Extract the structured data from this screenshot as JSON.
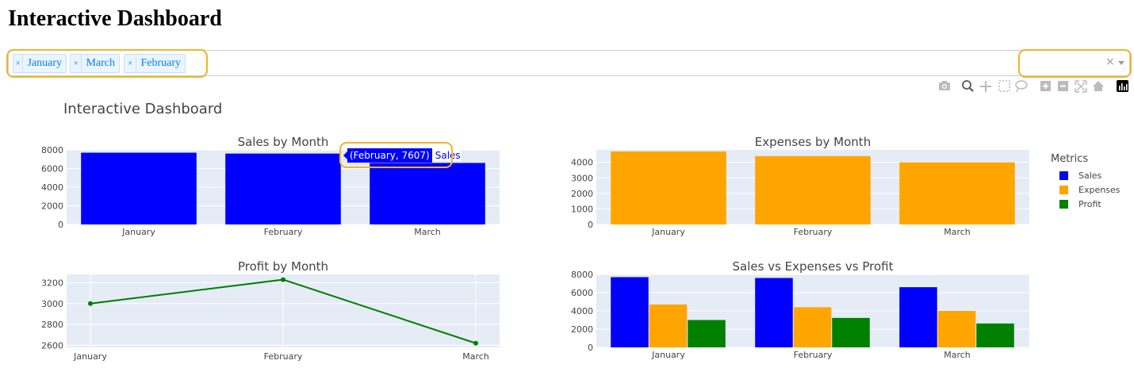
{
  "page": {
    "title": "Interactive Dashboard"
  },
  "month_dropdown": {
    "selected": [
      "January",
      "March",
      "February"
    ],
    "clear_symbol": "×",
    "remove_symbol": "×"
  },
  "metric_dropdown": {
    "value": "",
    "clear_symbol": "×"
  },
  "modebar": {
    "icons": [
      "camera-icon",
      "zoom-icon",
      "pan-icon",
      "box-select-icon",
      "lasso-select-icon",
      "zoom-in-icon",
      "zoom-out-icon",
      "autoscale-icon",
      "reset-axes-icon",
      "plotly-logo-icon"
    ]
  },
  "plot": {
    "title": "Interactive Dashboard"
  },
  "colors": {
    "sales": "#0000ff",
    "expenses": "#ffa500",
    "profit": "#008000",
    "plot_bg": "#e5ecf6",
    "highlight": "#f0b429"
  },
  "legend": {
    "title": "Metrics",
    "items": [
      {
        "label": "Sales",
        "color": "#0000ff"
      },
      {
        "label": "Expenses",
        "color": "#ffa500"
      },
      {
        "label": "Profit",
        "color": "#008000"
      }
    ]
  },
  "tooltip": {
    "text": "(February, 7607)",
    "series": "Sales"
  },
  "chart_data": [
    {
      "type": "bar",
      "title": "Sales by Month",
      "categories": [
        "January",
        "February",
        "March"
      ],
      "values": [
        7700,
        7607,
        6600
      ],
      "ylim": [
        0,
        8000
      ],
      "yticks": [
        0,
        2000,
        4000,
        6000,
        8000
      ],
      "color": "#0000ff"
    },
    {
      "type": "bar",
      "title": "Expenses by Month",
      "categories": [
        "January",
        "February",
        "March"
      ],
      "values": [
        4700,
        4400,
        4000
      ],
      "ylim": [
        0,
        4800
      ],
      "yticks": [
        0,
        1000,
        2000,
        3000,
        4000
      ],
      "color": "#ffa500"
    },
    {
      "type": "line",
      "title": "Profit by Month",
      "categories": [
        "January",
        "February",
        "March"
      ],
      "values": [
        3000,
        3230,
        2620
      ],
      "ylim": [
        2580,
        3280
      ],
      "yticks": [
        2600,
        2800,
        3000,
        3200
      ],
      "color": "#008000"
    },
    {
      "type": "bar",
      "title": "Sales vs Expenses vs Profit",
      "categories": [
        "January",
        "February",
        "March"
      ],
      "series": [
        {
          "name": "Sales",
          "values": [
            7700,
            7607,
            6600
          ],
          "color": "#0000ff"
        },
        {
          "name": "Expenses",
          "values": [
            4700,
            4400,
            4000
          ],
          "color": "#ffa500"
        },
        {
          "name": "Profit",
          "values": [
            3000,
            3230,
            2620
          ],
          "color": "#008000"
        }
      ],
      "ylim": [
        0,
        8000
      ],
      "yticks": [
        0,
        2000,
        4000,
        6000,
        8000
      ]
    }
  ]
}
